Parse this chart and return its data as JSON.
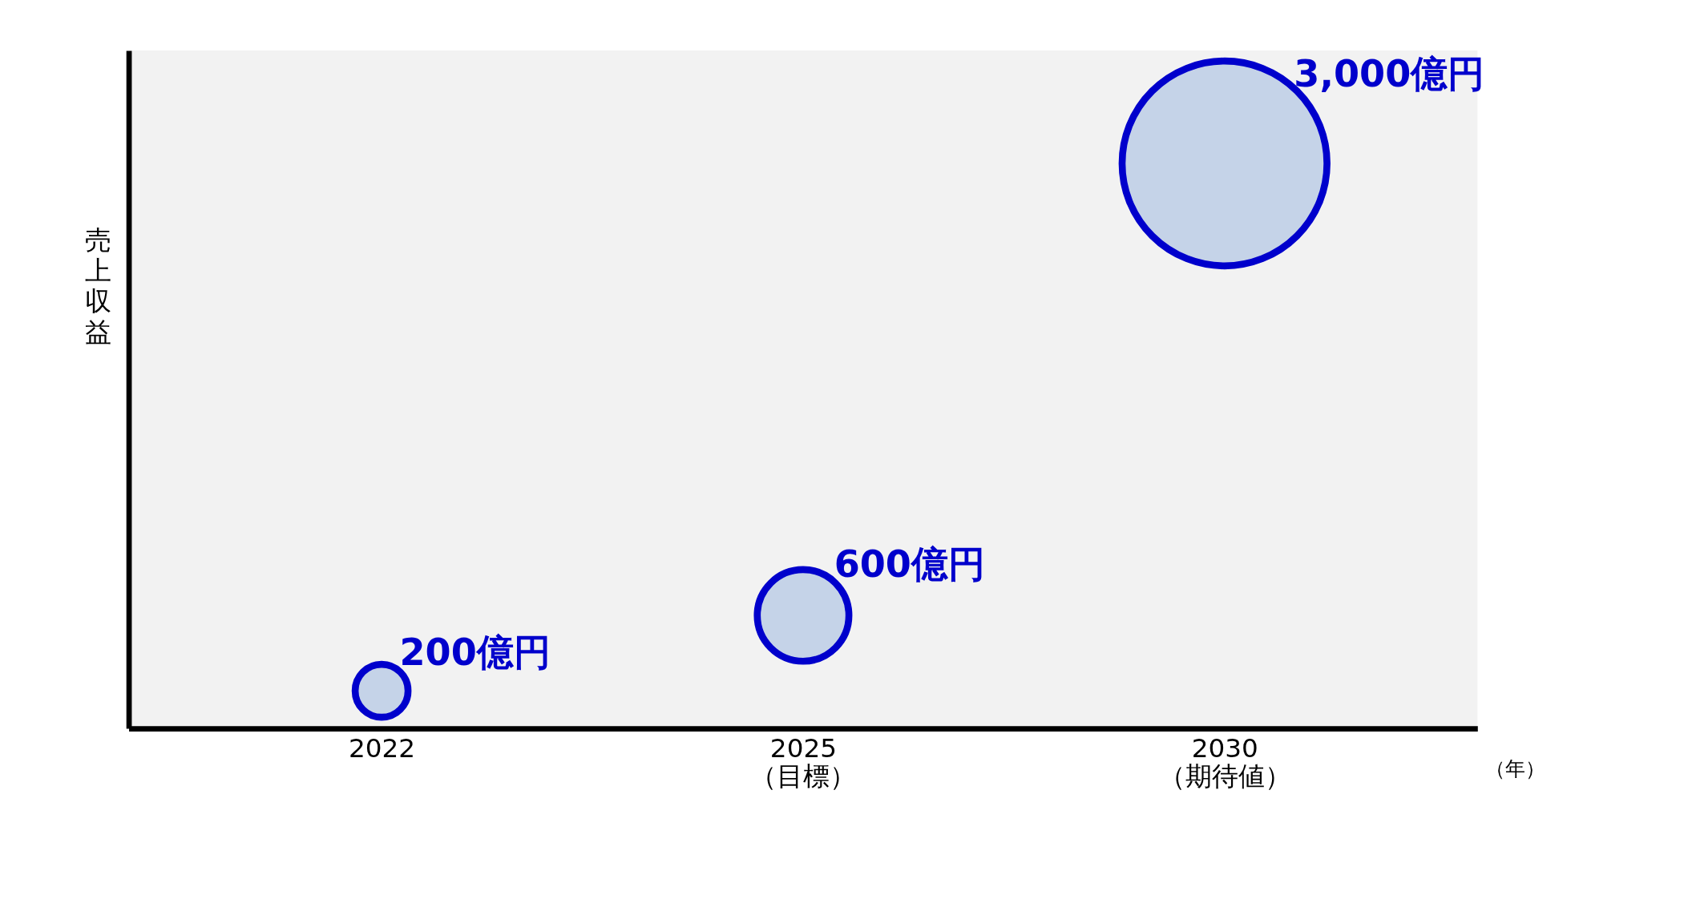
{
  "chart_data": {
    "type": "other",
    "categories": [
      "2022",
      "2025\n（目標）",
      "2030\n（期待値）"
    ],
    "values": [
      200,
      600,
      3000
    ],
    "value_labels": [
      "200億円",
      "600億円",
      "3,000億円"
    ],
    "color": "#c5d3e8",
    "xlabel": "（年）",
    "ylabel": "売上収益"
  }
}
